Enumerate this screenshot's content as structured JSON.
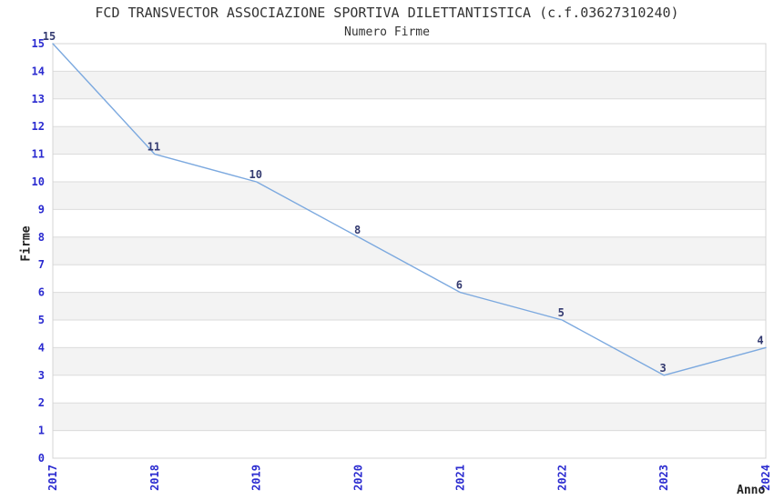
{
  "chart_data": {
    "type": "line",
    "title": "FCD TRANSVECTOR ASSOCIAZIONE SPORTIVA DILETTANTISTICA (c.f.03627310240)",
    "subtitle": "Numero Firme",
    "xlabel": "Anno",
    "ylabel": "Firme",
    "x": [
      "2017",
      "2018",
      "2019",
      "2020",
      "2021",
      "2022",
      "2023",
      "2024"
    ],
    "values": [
      15,
      11,
      10,
      8,
      6,
      5,
      3,
      4
    ],
    "ylim": [
      0,
      15
    ],
    "ytick_step": 1,
    "grid": "horizontal gridlines with alternating shaded bands",
    "legend": "none",
    "markers": "none, value labels above each point",
    "colors": {
      "line": "#7CA9DF",
      "tick_label": "#2B2BD0",
      "data_label": "#333A70",
      "band": "#F3F3F3",
      "grid": "#DBDBDB",
      "border": "#D4D4D4",
      "title_text": "#333333",
      "axis_title_text": "#222222",
      "background": "#FFFFFF"
    }
  }
}
